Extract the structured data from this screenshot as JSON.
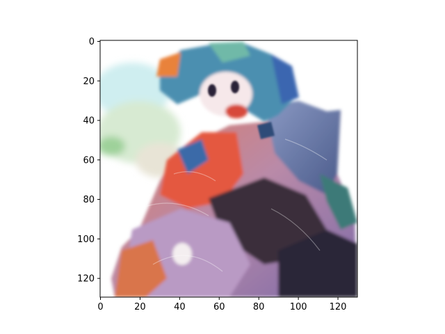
{
  "image": {
    "description_type": "imshow",
    "subject_icon": "generated-anime-character-image"
  },
  "axes": {
    "x_ticks": [
      "0",
      "20",
      "40",
      "60",
      "80",
      "100",
      "120"
    ],
    "y_ticks": [
      "0",
      "20",
      "40",
      "60",
      "80",
      "100",
      "120"
    ],
    "x_range": [
      0,
      130
    ],
    "y_range": [
      0,
      130
    ],
    "origin": "upper"
  },
  "colors": {
    "frame": "#000000",
    "background": "#ffffff"
  }
}
